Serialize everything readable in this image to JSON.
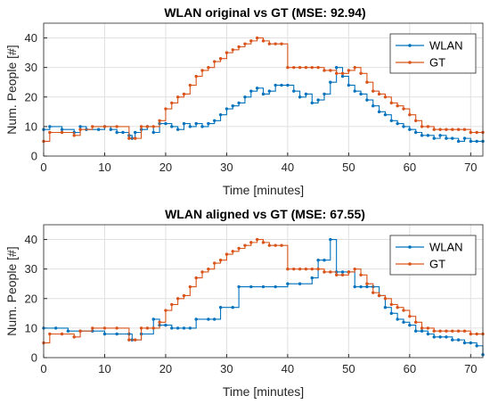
{
  "colors": {
    "wlan": "#0072bd",
    "gt": "#d95319",
    "grid": "#e0e0e0",
    "axis": "#262626"
  },
  "chart_data": [
    {
      "type": "line",
      "title": "WLAN original vs GT (MSE: 92.94)",
      "xlabel": "Time [minutes]",
      "ylabel": "Num. People [#]",
      "xlim": [
        0,
        72
      ],
      "ylim": [
        0,
        45
      ],
      "xticks": [
        "0",
        "10",
        "20",
        "30",
        "40",
        "50",
        "60",
        "70"
      ],
      "yticks": [
        "0",
        "10",
        "20",
        "30",
        "40"
      ],
      "grid": true,
      "legend_position": "top-right",
      "series": [
        {
          "name": "WLAN",
          "color": "#0072bd",
          "step": true,
          "x": [
            0,
            1,
            3,
            5,
            6,
            7,
            9,
            10,
            11,
            12,
            13,
            14,
            14.5,
            15,
            16,
            17,
            18,
            19,
            20,
            21,
            22,
            23,
            24,
            25,
            26,
            27,
            28,
            29,
            30,
            31,
            32,
            33,
            34,
            35,
            36,
            37,
            38,
            39,
            40,
            41,
            42,
            43,
            44,
            45,
            46,
            47,
            48,
            49,
            50,
            51,
            52,
            53,
            54,
            55,
            56,
            57,
            58,
            59,
            60,
            61,
            62,
            63,
            64,
            65,
            66,
            67,
            68,
            69,
            70,
            71,
            72
          ],
          "y": [
            9,
            10,
            9,
            8,
            10,
            9,
            9,
            10,
            9,
            8,
            8,
            7,
            6,
            8,
            9,
            10,
            8,
            11,
            11,
            10,
            9,
            11,
            10,
            11,
            10,
            11,
            12,
            14,
            16,
            17,
            18,
            20,
            22,
            23,
            21,
            22,
            24,
            24,
            24,
            22,
            20,
            21,
            18,
            19,
            21,
            25,
            30,
            27,
            24,
            22,
            21,
            19,
            17,
            15,
            14,
            12,
            11,
            10,
            9,
            8,
            7,
            7,
            6,
            7,
            6,
            6,
            5,
            6,
            5,
            5,
            5
          ]
        },
        {
          "name": "GT",
          "color": "#d95319",
          "step": true,
          "x": [
            0,
            1,
            3,
            5,
            6,
            8,
            10,
            12,
            14,
            15,
            16,
            17,
            18,
            19,
            20,
            21,
            22,
            23,
            24,
            25,
            26,
            27,
            28,
            29,
            30,
            31,
            32,
            33,
            34,
            35,
            36,
            37,
            38,
            39,
            40,
            41,
            42,
            43,
            44,
            45,
            46,
            47,
            48,
            49,
            50,
            51,
            52,
            53,
            54,
            55,
            56,
            57,
            58,
            59,
            60,
            61,
            62,
            63,
            64,
            65,
            66,
            67,
            68,
            69,
            70,
            71,
            72
          ],
          "y": [
            5,
            8,
            8,
            7,
            9,
            10,
            10,
            10,
            6,
            6,
            10,
            10,
            10,
            12,
            16,
            18,
            20,
            21,
            24,
            27,
            29,
            30,
            32,
            33,
            35,
            36,
            37,
            38,
            39,
            40,
            39,
            38,
            38,
            38,
            30,
            30,
            30,
            30,
            30,
            30,
            29,
            29,
            28,
            28,
            29,
            30,
            28,
            25,
            22,
            21,
            20,
            18,
            17,
            16,
            14,
            12,
            10,
            10,
            9,
            9,
            9,
            9,
            9,
            9,
            8,
            8,
            8
          ]
        }
      ]
    },
    {
      "type": "line",
      "title": "WLAN aligned vs GT (MSE: 67.55)",
      "xlabel": "Time [minutes]",
      "ylabel": "Num. People [#]",
      "xlim": [
        0,
        72
      ],
      "ylim": [
        0,
        45
      ],
      "xticks": [
        "0",
        "10",
        "20",
        "30",
        "40",
        "50",
        "60",
        "70"
      ],
      "yticks": [
        "0",
        "10",
        "20",
        "30",
        "40"
      ],
      "grid": true,
      "legend_position": "top-right",
      "series": [
        {
          "name": "WLAN",
          "color": "#0072bd",
          "step": true,
          "x": [
            0,
            2,
            4,
            6,
            8,
            10,
            12,
            14,
            14.5,
            16,
            18,
            19,
            20,
            21,
            22,
            23,
            24,
            25,
            27,
            28,
            29,
            31,
            32,
            34,
            36,
            38,
            40,
            42,
            44,
            45,
            46,
            47,
            48,
            49,
            50,
            51,
            52,
            53,
            54,
            55,
            56,
            57,
            58,
            59,
            60,
            61,
            62,
            63,
            64,
            65,
            66,
            67,
            68,
            69,
            70,
            71,
            72
          ],
          "y": [
            10,
            10,
            9,
            9,
            9,
            8,
            8,
            8,
            6,
            8,
            13,
            11,
            11,
            10,
            10,
            10,
            10,
            13,
            13,
            13,
            17,
            17,
            24,
            24,
            24,
            24,
            25,
            25,
            27,
            33,
            33,
            40,
            29,
            29,
            29,
            24,
            24,
            24,
            24,
            21,
            17,
            15,
            13,
            12,
            11,
            9,
            9,
            8,
            7,
            7,
            7,
            6,
            6,
            5,
            5,
            4,
            1
          ]
        },
        {
          "name": "GT",
          "color": "#d95319",
          "step": true,
          "x": [
            0,
            1,
            3,
            5,
            6,
            8,
            10,
            12,
            14,
            15,
            16,
            17,
            18,
            19,
            20,
            21,
            22,
            23,
            24,
            25,
            26,
            27,
            28,
            29,
            30,
            31,
            32,
            33,
            34,
            35,
            36,
            37,
            38,
            39,
            40,
            41,
            42,
            43,
            44,
            45,
            46,
            47,
            48,
            49,
            50,
            51,
            52,
            53,
            54,
            55,
            56,
            57,
            58,
            59,
            60,
            61,
            62,
            63,
            64,
            65,
            66,
            67,
            68,
            69,
            70,
            71,
            72
          ],
          "y": [
            5,
            8,
            8,
            7,
            9,
            10,
            10,
            10,
            6,
            6,
            10,
            10,
            10,
            12,
            16,
            18,
            20,
            21,
            24,
            27,
            29,
            30,
            32,
            33,
            35,
            36,
            37,
            38,
            39,
            40,
            39,
            38,
            38,
            38,
            30,
            30,
            30,
            30,
            30,
            30,
            29,
            29,
            28,
            28,
            29,
            30,
            28,
            25,
            22,
            21,
            20,
            18,
            17,
            16,
            14,
            12,
            10,
            10,
            9,
            9,
            9,
            9,
            9,
            9,
            8,
            8,
            8
          ]
        }
      ]
    }
  ]
}
